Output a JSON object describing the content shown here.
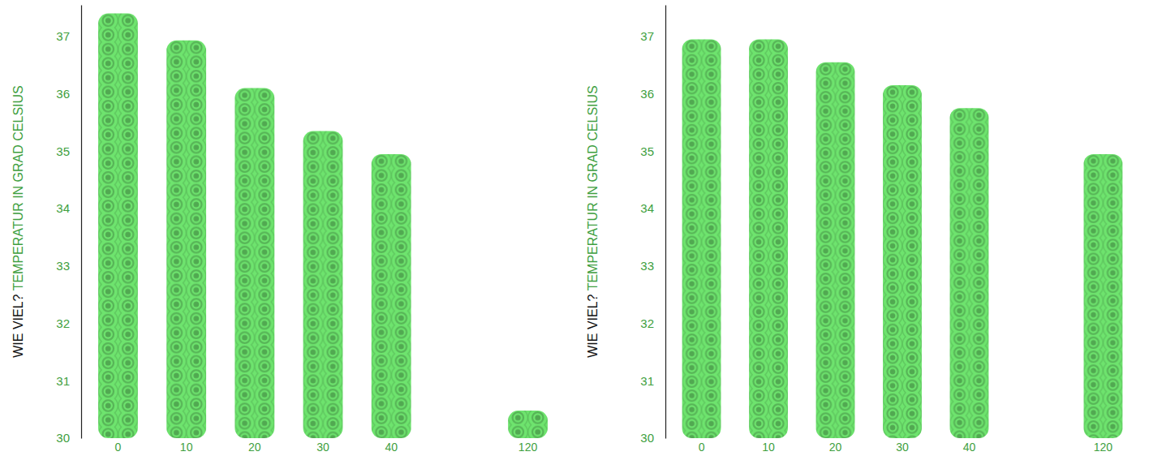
{
  "chart_data": [
    {
      "type": "bar",
      "ylabel": [
        "WIE VIEL?",
        "TEMPERATUR IN GRAD CELSIUS"
      ],
      "categories": [
        "0",
        "10",
        "20",
        "30",
        "40",
        null,
        "120"
      ],
      "values": [
        37.4,
        36.93,
        36.1,
        35.35,
        34.95,
        null,
        30.48
      ],
      "color": "#5cbf5c",
      "ylim": [
        30,
        37.55
      ],
      "yticks": [
        30,
        31,
        32,
        33,
        34,
        35,
        36,
        37
      ]
    },
    {
      "type": "bar",
      "ylabel": [
        "WIE VIEL?",
        "TEMPERATUR IN GRAD CELSIUS"
      ],
      "categories": [
        "0",
        "10",
        "20",
        "30",
        "40",
        null,
        "120"
      ],
      "values": [
        36.95,
        36.95,
        36.55,
        36.15,
        35.75,
        null,
        34.95
      ],
      "color": "#5cbf5c",
      "ylim": [
        30,
        37.55
      ],
      "yticks": [
        30,
        31,
        32,
        33,
        34,
        35,
        36,
        37
      ]
    }
  ]
}
